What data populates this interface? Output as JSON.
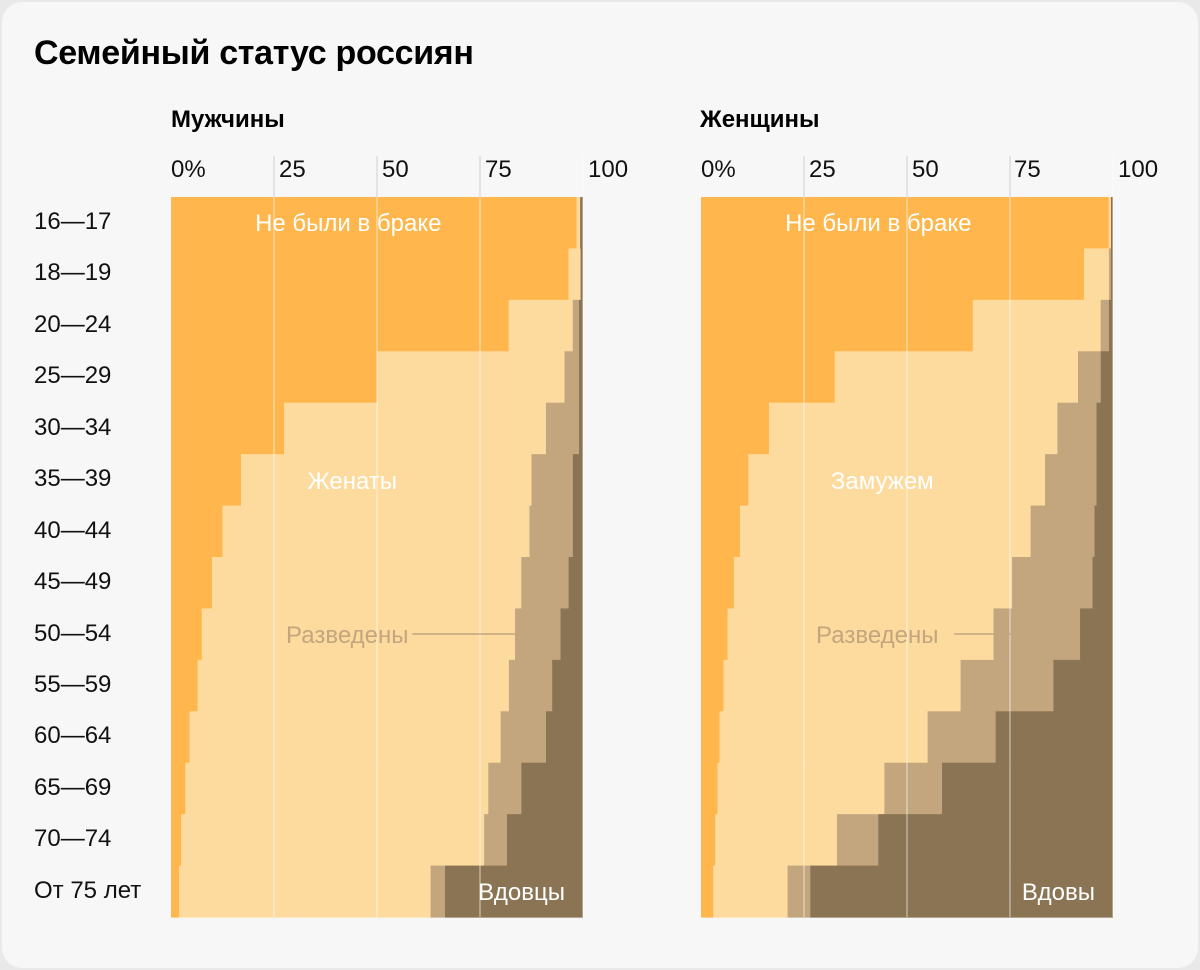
{
  "title": "Семейный статус россиян",
  "age_groups": [
    "16—17",
    "18—19",
    "20—24",
    "25—29",
    "30—34",
    "35—39",
    "40—44",
    "45—49",
    "50—54",
    "55—59",
    "60—64",
    "65—69",
    "70—74",
    "От 75 лет"
  ],
  "ticks": [
    "0%",
    "25",
    "50",
    "75",
    "100"
  ],
  "colors": {
    "never_married": "#FFB74D",
    "married": "#FDDB9F",
    "divorced": "#C3A67D",
    "widowed": "#8A7453"
  },
  "chart_data": [
    {
      "type": "bar",
      "title": "Мужчины",
      "stacked": true,
      "orientation": "horizontal",
      "xlim": [
        0,
        100
      ],
      "categories": [
        "16—17",
        "18—19",
        "20—24",
        "25—29",
        "30—34",
        "35—39",
        "40—44",
        "45—49",
        "50—54",
        "55—59",
        "60—64",
        "65—69",
        "70—74",
        "От 75 лет"
      ],
      "series": [
        {
          "key": "never_married",
          "label": "Не были в браке",
          "values": [
            98.5,
            96.5,
            82.0,
            50.0,
            27.5,
            17.0,
            12.5,
            10.0,
            7.5,
            6.5,
            4.5,
            3.5,
            2.5,
            2.0
          ]
        },
        {
          "key": "married",
          "label": "Женаты",
          "values": [
            0.8,
            2.8,
            15.5,
            45.5,
            63.5,
            70.5,
            74.5,
            75.0,
            76.0,
            75.5,
            75.5,
            73.5,
            73.5,
            61.0
          ]
        },
        {
          "key": "divorced",
          "label": "Разведены",
          "values": [
            0.0,
            0.2,
            1.5,
            3.5,
            8.0,
            10.0,
            10.5,
            11.5,
            11.0,
            10.5,
            11.0,
            8.0,
            5.5,
            3.5
          ]
        },
        {
          "key": "widowed",
          "label": "Вдовцы",
          "values": [
            0.7,
            0.5,
            1.0,
            1.0,
            1.0,
            2.5,
            2.5,
            3.5,
            5.5,
            7.5,
            9.0,
            15.0,
            18.5,
            33.5
          ]
        }
      ]
    },
    {
      "type": "bar",
      "title": "Женщины",
      "stacked": true,
      "orientation": "horizontal",
      "xlim": [
        0,
        100
      ],
      "categories": [
        "16—17",
        "18—19",
        "20—24",
        "25—29",
        "30—34",
        "35—39",
        "40—44",
        "45—49",
        "50—54",
        "55—59",
        "60—64",
        "65—69",
        "70—74",
        "От 75 лет"
      ],
      "series": [
        {
          "key": "never_married",
          "label": "Не были в браке",
          "values": [
            99.0,
            93.0,
            66.0,
            32.5,
            16.5,
            11.5,
            9.5,
            8.0,
            6.5,
            5.5,
            4.5,
            4.0,
            3.5,
            3.0
          ]
        },
        {
          "key": "married",
          "label": "Замужем",
          "values": [
            0.5,
            6.0,
            31.0,
            59.0,
            70.0,
            72.0,
            70.5,
            67.5,
            64.5,
            57.5,
            50.5,
            40.5,
            29.5,
            18.0
          ]
        },
        {
          "key": "divorced",
          "label": "Разведены",
          "values": [
            0.0,
            0.5,
            2.0,
            5.5,
            9.5,
            12.5,
            15.5,
            19.5,
            21.0,
            22.5,
            16.5,
            14.0,
            10.0,
            5.5
          ]
        },
        {
          "key": "widowed",
          "label": "Вдовы",
          "values": [
            0.5,
            0.5,
            1.0,
            3.0,
            4.0,
            4.0,
            4.5,
            5.0,
            8.0,
            14.5,
            28.5,
            41.5,
            57.0,
            73.5
          ]
        }
      ]
    }
  ]
}
